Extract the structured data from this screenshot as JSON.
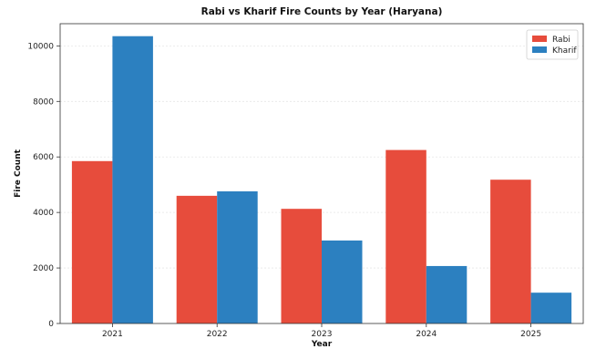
{
  "chart_data": {
    "type": "bar",
    "title": "Rabi vs Kharif Fire Counts by Year (Haryana)",
    "xlabel": "Year",
    "ylabel": "Fire Count",
    "categories": [
      "2021",
      "2022",
      "2023",
      "2024",
      "2025"
    ],
    "series": [
      {
        "name": "Rabi",
        "color": "#e74c3c",
        "values": [
          5850,
          4600,
          4130,
          6250,
          5180
        ]
      },
      {
        "name": "Kharif",
        "color": "#2c80c0",
        "values": [
          10350,
          4760,
          2990,
          2070,
          1110
        ]
      }
    ],
    "ylim": [
      0,
      10800
    ],
    "yticks": [
      0,
      2000,
      4000,
      6000,
      8000,
      10000
    ],
    "grid": true,
    "grid_axis": "y",
    "legend_position": "top-right"
  }
}
